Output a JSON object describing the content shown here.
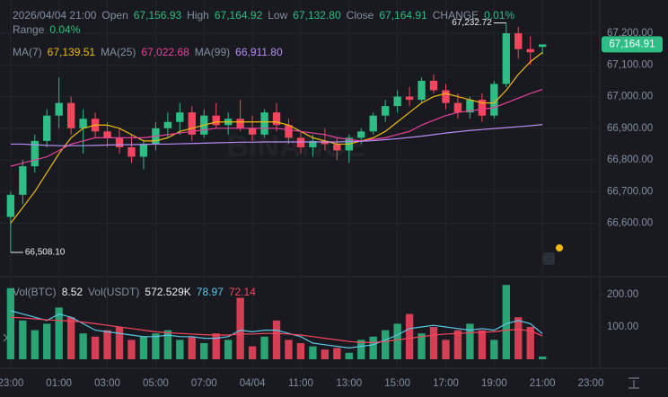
{
  "chart_data": {
    "type": "candlestick",
    "x": [
      0,
      0.5,
      1,
      1.5,
      2,
      2.5,
      3,
      3.5,
      4,
      4.5,
      5,
      5.5,
      6,
      6.5,
      7,
      7.5,
      8,
      8.5,
      9,
      9.5,
      10,
      10.5,
      11,
      11.5,
      12,
      12.5,
      13,
      13.5,
      14,
      14.5,
      15,
      15.5,
      16,
      16.5,
      17,
      17.5,
      18,
      18.5,
      19,
      19.5,
      20,
      20.5,
      21,
      21.5,
      22
    ],
    "candles": [
      [
        66620,
        66700,
        66508.1,
        66690
      ],
      [
        66690,
        66800,
        66660,
        66780
      ],
      [
        66780,
        66880,
        66760,
        66860
      ],
      [
        66860,
        66960,
        66840,
        66940
      ],
      [
        66940,
        67060,
        66900,
        66980
      ],
      [
        66980,
        67000,
        66880,
        66900
      ],
      [
        66900,
        66960,
        66820,
        66930
      ],
      [
        66930,
        66950,
        66870,
        66890
      ],
      [
        66890,
        66920,
        66840,
        66870
      ],
      [
        66870,
        66900,
        66820,
        66840
      ],
      [
        66840,
        66880,
        66790,
        66810
      ],
      [
        66810,
        66860,
        66770,
        66850
      ],
      [
        66850,
        66920,
        66830,
        66900
      ],
      [
        66900,
        66950,
        66870,
        66920
      ],
      [
        66920,
        66980,
        66880,
        66950
      ],
      [
        66950,
        66970,
        66860,
        66880
      ],
      [
        66880,
        66960,
        66870,
        66940
      ],
      [
        66940,
        66980,
        66900,
        66910
      ],
      [
        66910,
        66950,
        66880,
        66930
      ],
      [
        66930,
        66990,
        66890,
        66900
      ],
      [
        66900,
        66940,
        66860,
        66880
      ],
      [
        66880,
        66960,
        66870,
        66950
      ],
      [
        66950,
        66980,
        66890,
        66910
      ],
      [
        66910,
        66930,
        66850,
        66870
      ],
      [
        66870,
        66890,
        66820,
        66840
      ],
      [
        66840,
        66880,
        66810,
        66860
      ],
      [
        66860,
        66900,
        66830,
        66850
      ],
      [
        66850,
        66870,
        66800,
        66830
      ],
      [
        66830,
        66880,
        66790,
        66870
      ],
      [
        66870,
        66900,
        66850,
        66890
      ],
      [
        66890,
        66950,
        66880,
        66940
      ],
      [
        66940,
        66990,
        66920,
        66970
      ],
      [
        66970,
        67020,
        66950,
        67000
      ],
      [
        67000,
        67030,
        66970,
        66990
      ],
      [
        66990,
        67060,
        66980,
        67050
      ],
      [
        67050,
        67070,
        67010,
        67020
      ],
      [
        67020,
        67040,
        66960,
        66980
      ],
      [
        66980,
        67010,
        66930,
        66950
      ],
      [
        66950,
        67000,
        66930,
        66990
      ],
      [
        66990,
        67010,
        66920,
        66940
      ],
      [
        66940,
        67050,
        66930,
        67040
      ],
      [
        67040,
        67232.72,
        67030,
        67200
      ],
      [
        67200,
        67220,
        67120,
        67150
      ],
      [
        67150,
        67190,
        67100,
        67140
      ],
      [
        67156.93,
        67164.92,
        67132.8,
        67164.91
      ]
    ],
    "up_color": "#2ebd85",
    "down_color": "#f6465d",
    "xlim": [
      -0.44,
      24.37
    ],
    "xticks": [
      {
        "value": 0,
        "label": "23:00"
      },
      {
        "value": 2,
        "label": "01:00"
      },
      {
        "value": 4,
        "label": "03:00"
      },
      {
        "value": 6,
        "label": "05:00"
      },
      {
        "value": 8,
        "label": "07:00"
      },
      {
        "value": 10,
        "label": "04/04"
      },
      {
        "value": 12,
        "label": "11:00"
      },
      {
        "value": 14,
        "label": "13:00"
      },
      {
        "value": 16,
        "label": "15:00"
      },
      {
        "value": 18,
        "label": "17:00"
      },
      {
        "value": 20,
        "label": "19:00"
      },
      {
        "value": 22,
        "label": "21:00"
      },
      {
        "value": 24,
        "label": "23:00"
      }
    ],
    "ylim": [
      66440,
      67305
    ],
    "yticks": [
      {
        "value": 66600,
        "label": "66,600.00"
      },
      {
        "value": 66700,
        "label": "66,700.00"
      },
      {
        "value": 66800,
        "label": "66,800.00"
      },
      {
        "value": 66900,
        "label": "66,900.00"
      },
      {
        "value": 67000,
        "label": "67,000.00"
      },
      {
        "value": 67100,
        "label": "67,100.00"
      },
      {
        "value": 67200,
        "label": "67,200.00"
      }
    ],
    "grid": true,
    "header": {
      "time": "2026/04/04 21:00",
      "fields": [
        {
          "name": "Open",
          "label": "67,156.93"
        },
        {
          "name": "High",
          "label": "67,164.92"
        },
        {
          "name": "Low",
          "label": "67,132.80"
        },
        {
          "name": "Close",
          "label": "67,164.91"
        },
        {
          "name": "CHANGE",
          "label": "0.01%"
        }
      ],
      "range_name": "Range",
      "range_label": "0.04%"
    },
    "ma": [
      {
        "name": "MA(7)",
        "color": "#f0b90b",
        "value_label": "67,139.51",
        "values": [
          66600,
          66650,
          66700,
          66760,
          66820,
          66870,
          66900,
          66910,
          66910,
          66900,
          66880,
          66860,
          66860,
          66870,
          66890,
          66900,
          66910,
          66920,
          66920,
          66920,
          66920,
          66920,
          66920,
          66910,
          66890,
          66870,
          66860,
          66850,
          66850,
          66860,
          66870,
          66890,
          66920,
          66950,
          66980,
          67000,
          67010,
          67000,
          66990,
          66980,
          66980,
          67020,
          67070,
          67110,
          67139.51
        ]
      },
      {
        "name": "MA(25)",
        "color": "#e8409a",
        "value_label": "67,022.68",
        "values": [
          66780,
          66790,
          66800,
          66810,
          66830,
          66850,
          66860,
          66870,
          66870,
          66870,
          66870,
          66870,
          66875,
          66880,
          66885,
          66890,
          66895,
          66900,
          66900,
          66900,
          66900,
          66900,
          66900,
          66895,
          66890,
          66885,
          66880,
          66870,
          66865,
          66860,
          66865,
          66870,
          66880,
          66890,
          66910,
          66925,
          66940,
          66950,
          66955,
          66960,
          66965,
          66980,
          66995,
          67010,
          67022.68
        ]
      },
      {
        "name": "MA(99)",
        "color": "#b98cf5",
        "value_label": "66,911.80",
        "values": [
          66850,
          66850,
          66848,
          66846,
          66845,
          66845,
          66845,
          66846,
          66847,
          66848,
          66848,
          66849,
          66850,
          66850,
          66851,
          66852,
          66853,
          66854,
          66855,
          66856,
          66856,
          66857,
          66857,
          66857,
          66857,
          66857,
          66857,
          66857,
          66858,
          66859,
          66861,
          66864,
          66867,
          66871,
          66875,
          66880,
          66885,
          66889,
          66893,
          66896,
          66899,
          66902,
          66905,
          66908,
          66911.8
        ]
      }
    ],
    "high_label": "67,232.72",
    "low_label": "66,508.10",
    "last_price_label": "67,164.91",
    "watermark": "BINANCE",
    "volume": {
      "name": "Vol(BTC)",
      "value_label": "8.52",
      "usdt_name": "Vol(USDT)",
      "usdt_label": "572.529K",
      "values": [
        220,
        120,
        90,
        110,
        160,
        130,
        80,
        70,
        90,
        100,
        60,
        70,
        80,
        90,
        60,
        70,
        50,
        80,
        60,
        190,
        40,
        70,
        120,
        60,
        50,
        40,
        30,
        35,
        20,
        60,
        70,
        90,
        110,
        140,
        80,
        100,
        60,
        90,
        110,
        90,
        60,
        230,
        130,
        100,
        8.52
      ],
      "ylim": [
        0,
        250
      ],
      "yticks": [
        {
          "value": 100,
          "label": "100.00"
        },
        {
          "value": 200,
          "label": "200.00"
        }
      ],
      "ma": [
        {
          "color": "#5ac8e8",
          "value_label": "78.97",
          "values": [
            150,
            140,
            130,
            120,
            140,
            130,
            110,
            90,
            85,
            80,
            75,
            70,
            70,
            75,
            70,
            70,
            65,
            65,
            70,
            90,
            85,
            90,
            90,
            80,
            70,
            50,
            45,
            40,
            35,
            40,
            45,
            60,
            75,
            95,
            100,
            105,
            100,
            95,
            90,
            95,
            90,
            110,
            120,
            110,
            78.97
          ]
        },
        {
          "color": "#f6465d",
          "value_label": "72.14",
          "values": [
            130,
            128,
            125,
            122,
            120,
            118,
            115,
            110,
            105,
            100,
            95,
            90,
            85,
            82,
            80,
            78,
            76,
            75,
            75,
            78,
            78,
            80,
            80,
            78,
            75,
            70,
            65,
            60,
            55,
            52,
            52,
            55,
            60,
            65,
            70,
            75,
            78,
            80,
            82,
            84,
            85,
            90,
            92,
            88,
            72.14
          ]
        }
      ]
    }
  }
}
